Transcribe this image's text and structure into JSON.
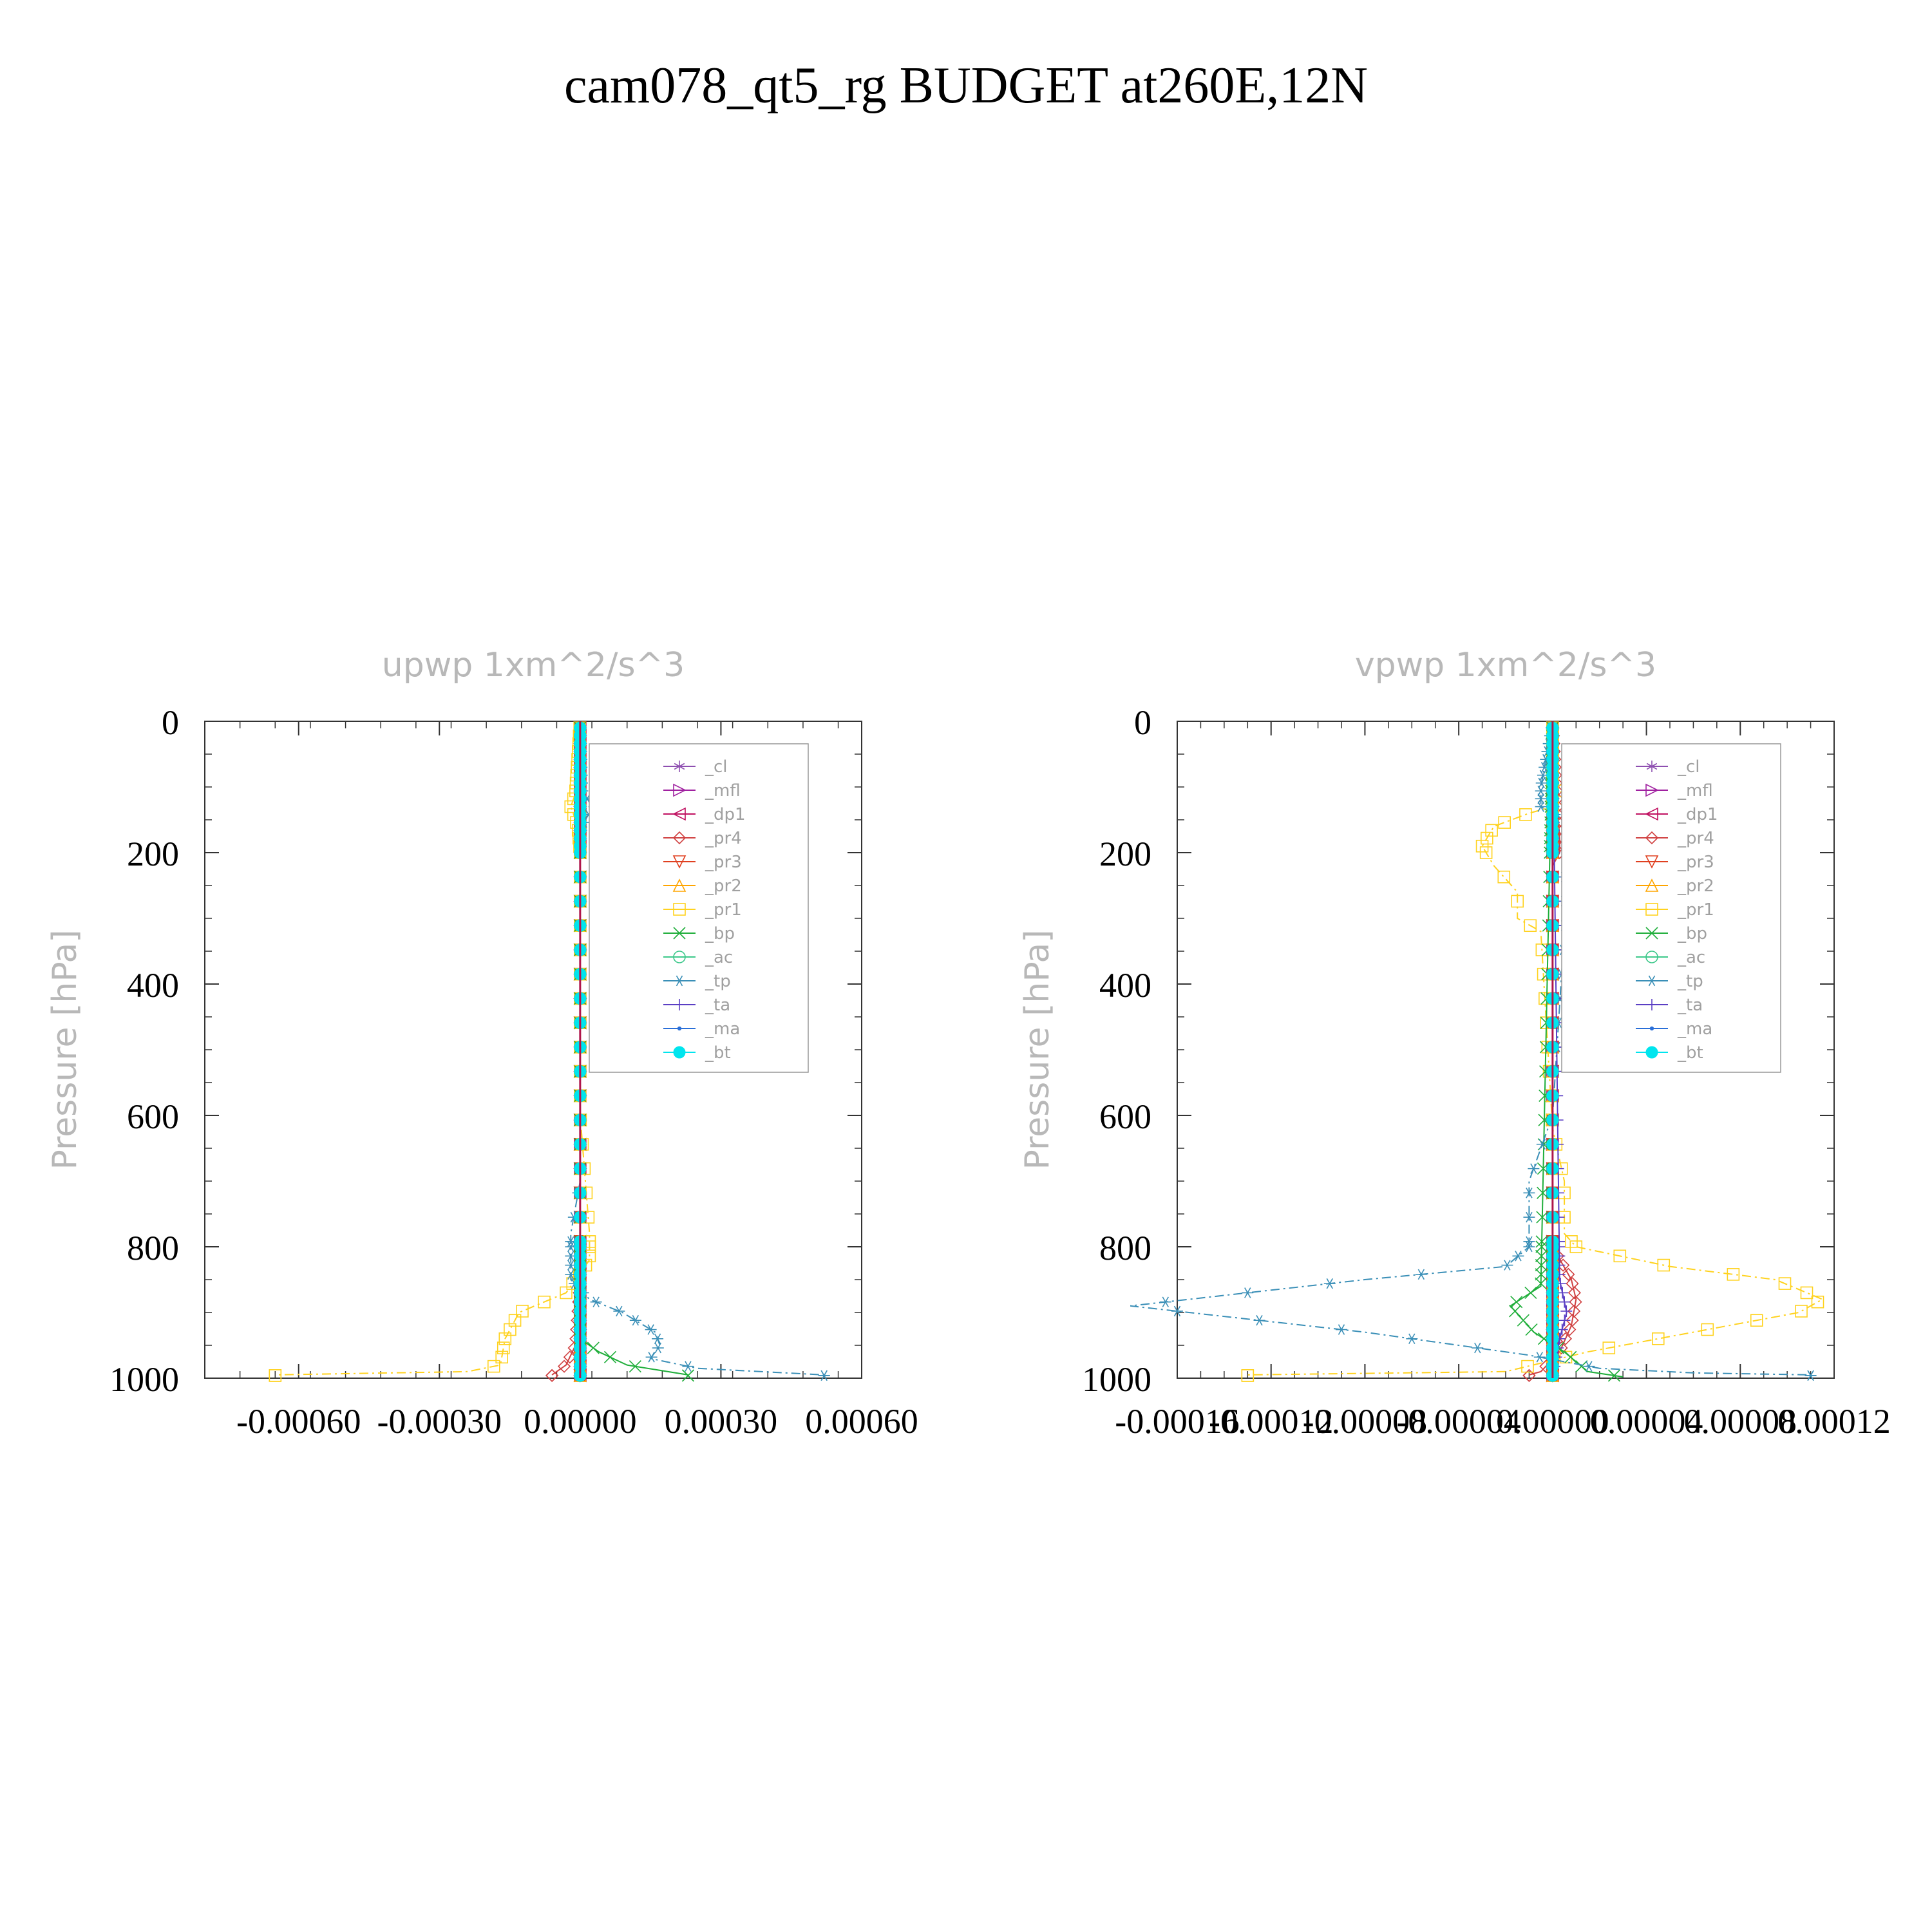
{
  "figure": {
    "title": "cam078_qt5_rg  BUDGET at260E,12N"
  },
  "chart_data": [
    {
      "type": "line",
      "title": "upwp   1xm^2/s^3",
      "ylabel": "Pressure [hPa]",
      "xlabel": "",
      "xlim": [
        -0.0008,
        0.0006
      ],
      "ylim": [
        1000,
        0
      ],
      "x_ticks": [
        -0.0006,
        -0.0003,
        0.0,
        0.0003,
        0.0006
      ],
      "x_tick_labels": [
        "-0.00060",
        "-0.00030",
        "0.00000",
        "0.00030",
        "0.00060"
      ],
      "y_ticks": [
        0,
        200,
        400,
        600,
        800,
        1000
      ],
      "y_tick_labels": [
        "0",
        "200",
        "400",
        "600",
        "800",
        "1000"
      ],
      "legend": "top-right",
      "series": [
        {
          "name": "_cl",
          "color": "#8e4fb0",
          "marker": "star-6",
          "p": [
            0,
            500,
            1000
          ],
          "x": [
            0,
            0,
            0
          ]
        },
        {
          "name": "_mfl",
          "color": "#a020a0",
          "marker": "tri-right",
          "p": [
            0,
            500,
            1000
          ],
          "x": [
            0,
            0,
            0
          ]
        },
        {
          "name": "_dp1",
          "color": "#c01060",
          "marker": "tri-left",
          "p": [
            0,
            500,
            1000
          ],
          "x": [
            0,
            0,
            0
          ]
        },
        {
          "name": "_pr4",
          "color": "#d04040",
          "marker": "diamond",
          "p": [
            0,
            850,
            900,
            950,
            980,
            995
          ],
          "x": [
            0,
            0,
            -5e-06,
            -1e-05,
            -3e-05,
            -6e-05
          ]
        },
        {
          "name": "_pr3",
          "color": "#e04020",
          "marker": "tri-down",
          "p": [
            0,
            500,
            1000
          ],
          "x": [
            0,
            0,
            0
          ]
        },
        {
          "name": "_pr2",
          "color": "#ffa500",
          "marker": "tri-up",
          "p": [
            0,
            500,
            1000
          ],
          "x": [
            0,
            0,
            0
          ]
        },
        {
          "name": "_pr1",
          "color": "#ffd21e",
          "marker": "square",
          "p": [
            0,
            110,
            130,
            160,
            200,
            600,
            780,
            820,
            870,
            900,
            940,
            980,
            990,
            995
          ],
          "x": [
            0,
            -1e-05,
            -2e-05,
            -5e-06,
            0,
            0,
            2e-05,
            2e-05,
            -3e-05,
            -0.00013,
            -0.00016,
            -0.00017,
            -0.00024,
            -0.00065
          ]
        },
        {
          "name": "_bp",
          "color": "#1fae3a",
          "marker": "x",
          "p": [
            0,
            940,
            960,
            980,
            995
          ],
          "x": [
            0,
            0,
            4e-05,
            0.0001,
            0.00023
          ]
        },
        {
          "name": "_ac",
          "color": "#3cc88a",
          "marker": "circle",
          "p": [
            0,
            1000
          ],
          "x": [
            0,
            0
          ]
        },
        {
          "name": "_tp",
          "color": "#3a8fb7",
          "marker": "asterisk",
          "p": [
            0,
            110,
            130,
            150,
            170,
            700,
            780,
            850,
            880,
            900,
            930,
            950,
            970,
            985,
            995
          ],
          "x": [
            0,
            5e-06,
            3e-05,
            1e-05,
            0,
            0,
            -2e-05,
            -2e-05,
            2e-05,
            9e-05,
            0.00016,
            0.00017,
            0.00015,
            0.00025,
            0.00052
          ]
        },
        {
          "name": "_ta",
          "color": "#5b3fc4",
          "marker": "plus",
          "p": [
            0,
            1000
          ],
          "x": [
            0,
            0
          ]
        },
        {
          "name": "_ma",
          "color": "#2a6fd8",
          "marker": "dot",
          "p": [
            0,
            1000
          ],
          "x": [
            0,
            0
          ]
        },
        {
          "name": "_bt",
          "color": "#00e5ee",
          "marker": "filled-circle",
          "p": [
            0,
            1000
          ],
          "x": [
            0,
            0
          ]
        }
      ]
    },
    {
      "type": "line",
      "title": "vpwp   1xm^2/s^3",
      "ylabel": "Pressure [hPa]",
      "xlabel": "",
      "xlim": [
        -0.00016,
        0.00012
      ],
      "ylim": [
        1000,
        0
      ],
      "x_ticks": [
        -0.00016,
        -0.00012,
        -8e-05,
        -4e-05,
        0.0,
        4e-05,
        8e-05,
        0.00012
      ],
      "x_tick_labels": [
        "-0.00016",
        "-0.00012",
        "-0.00008",
        "-0.00004",
        "0.00000",
        "0.00004",
        "0.00008",
        "0.00012"
      ],
      "y_ticks": [
        0,
        200,
        400,
        600,
        800,
        1000
      ],
      "y_tick_labels": [
        "0",
        "200",
        "400",
        "600",
        "800",
        "1000"
      ],
      "legend": "top-right",
      "series": [
        {
          "name": "_cl",
          "color": "#8e4fb0",
          "marker": "star-6",
          "p": [
            0,
            500,
            1000
          ],
          "x": [
            0,
            0,
            0
          ]
        },
        {
          "name": "_mfl",
          "color": "#a020a0",
          "marker": "tri-right",
          "p": [
            0,
            500,
            1000
          ],
          "x": [
            0,
            0,
            0
          ]
        },
        {
          "name": "_dp1",
          "color": "#c01060",
          "marker": "tri-left",
          "p": [
            0,
            500,
            1000
          ],
          "x": [
            0,
            0,
            0
          ]
        },
        {
          "name": "_pr4",
          "color": "#d04040",
          "marker": "diamond",
          "p": [
            0,
            180,
            200,
            220,
            800,
            850,
            880,
            920,
            960,
            990,
            995
          ],
          "x": [
            0,
            3e-06,
            3e-06,
            0,
            0,
            8e-06,
            1e-05,
            8e-06,
            3e-06,
            -5e-06,
            -1e-05
          ]
        },
        {
          "name": "_pr3",
          "color": "#e04020",
          "marker": "tri-down",
          "p": [
            0,
            500,
            1000
          ],
          "x": [
            0,
            0,
            0
          ]
        },
        {
          "name": "_pr2",
          "color": "#ffa500",
          "marker": "tri-up",
          "p": [
            0,
            500,
            1000
          ],
          "x": [
            0,
            0,
            0
          ]
        },
        {
          "name": "_pr1",
          "color": "#ffd21e",
          "marker": "square",
          "p": [
            0,
            100,
            120,
            140,
            160,
            190,
            220,
            260,
            300,
            320,
            620,
            700,
            780,
            800,
            830,
            850,
            880,
            900,
            930,
            960,
            990,
            995
          ],
          "x": [
            0,
            0,
            1e-05,
            -1e-05,
            -2.5e-05,
            -3e-05,
            -2.5e-05,
            -1.5e-05,
            -1.5e-05,
            -5e-06,
            0,
            5e-06,
            5e-06,
            1e-05,
            5e-05,
            9.5e-05,
            0.000115,
            0.000105,
            6e-05,
            1.5e-05,
            -2e-05,
            -0.00013
          ]
        },
        {
          "name": "_bp",
          "color": "#1fae3a",
          "marker": "x",
          "p": [
            0,
            860,
            890,
            930,
            960,
            990,
            998
          ],
          "x": [
            0,
            -5e-06,
            -1.8e-05,
            -8e-06,
            5e-06,
            1.5e-05,
            3e-05
          ]
        },
        {
          "name": "_ac",
          "color": "#3cc88a",
          "marker": "circle",
          "p": [
            0,
            1000
          ],
          "x": [
            0,
            0
          ]
        },
        {
          "name": "_tp",
          "color": "#3a8fb7",
          "marker": "asterisk",
          "p": [
            0,
            100,
            130,
            150,
            170,
            190,
            230,
            280,
            320,
            600,
            700,
            800,
            830,
            850,
            870,
            890,
            910,
            930,
            950,
            965,
            985,
            992,
            995
          ],
          "x": [
            0,
            -5e-06,
            -5e-06,
            5e-06,
            2e-05,
            2.5e-05,
            5e-06,
            5e-06,
            5e-06,
            0,
            -1e-05,
            -1e-05,
            -2e-05,
            -8e-05,
            -0.00013,
            -0.00018,
            -0.00013,
            -8e-05,
            -4e-05,
            -1e-05,
            2e-05,
            6e-05,
            0.00011
          ]
        },
        {
          "name": "_ta",
          "color": "#5b3fc4",
          "marker": "plus",
          "p": [
            0,
            850,
            900,
            940,
            1000
          ],
          "x": [
            0,
            3e-06,
            6e-06,
            3e-06,
            0
          ]
        },
        {
          "name": "_ma",
          "color": "#2a6fd8",
          "marker": "dot",
          "p": [
            0,
            1000
          ],
          "x": [
            0,
            0
          ]
        },
        {
          "name": "_bt",
          "color": "#00e5ee",
          "marker": "filled-circle",
          "p": [
            0,
            1000
          ],
          "x": [
            0,
            0
          ]
        }
      ]
    }
  ]
}
